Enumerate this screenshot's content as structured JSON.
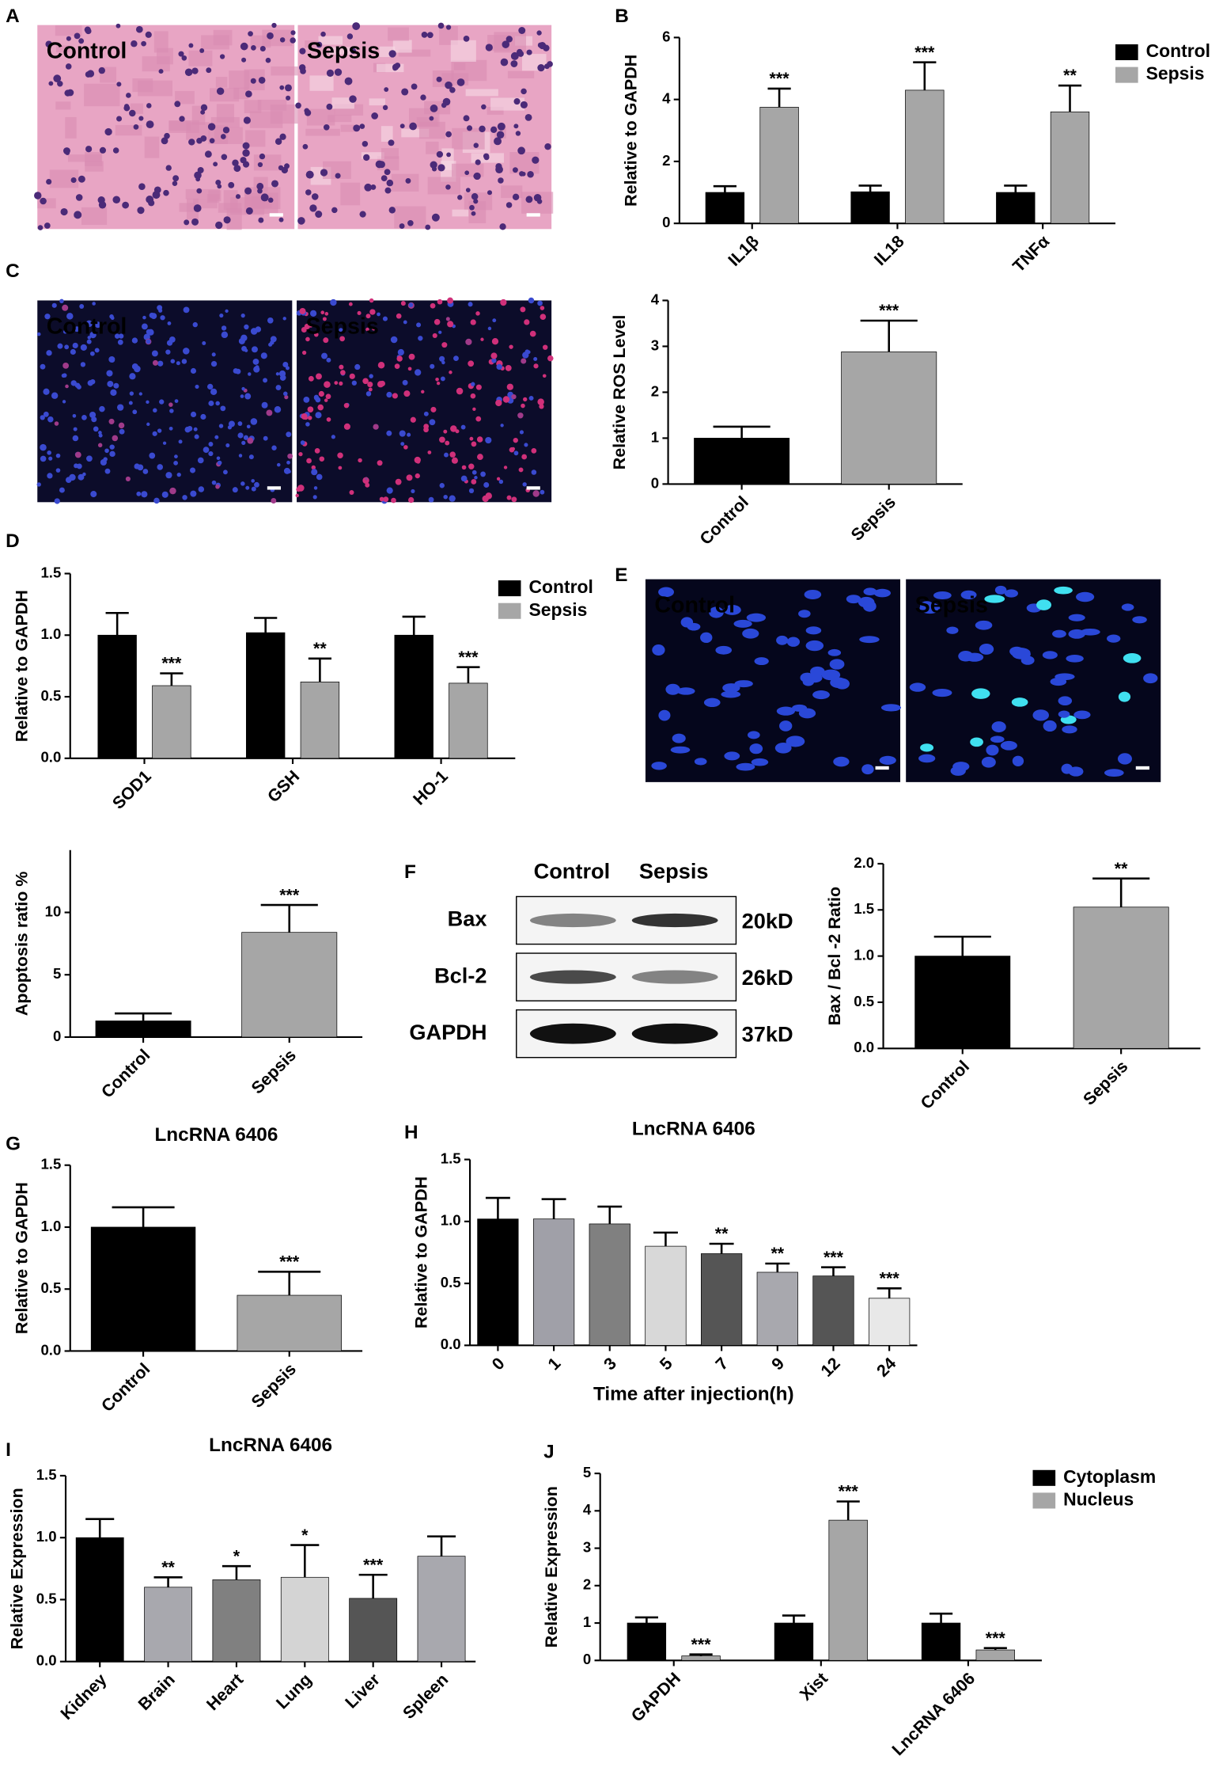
{
  "panels": [
    "A",
    "B",
    "C",
    "D",
    "E",
    "F",
    "G",
    "H",
    "I",
    "J"
  ],
  "images": [
    {
      "label": "Control"
    },
    {
      "label": "Sepsis"
    },
    {
      "label": "Control"
    },
    {
      "label": "Sepsis"
    },
    {
      "label": "Control"
    },
    {
      "label": "Sepsis"
    }
  ],
  "blot": {
    "header": [
      "Control",
      "Sepsis"
    ],
    "rows": [
      {
        "label": "Bax",
        "size": "20kD"
      },
      {
        "label": "Bcl-2",
        "size": "26kD"
      },
      {
        "label": "GAPDH",
        "size": "37kD"
      }
    ]
  },
  "chart_data": [
    {
      "type": "bar",
      "ylabel": "Relative to GAPDH",
      "categories": [
        "IL1β",
        "IL18",
        "TNFα"
      ],
      "legend": "upper right",
      "series": [
        {
          "name": "Control",
          "color": "#000000",
          "values": [
            1,
            1.02,
            1
          ],
          "errors": [
            0.2,
            0.2,
            0.22
          ],
          "annotations": [
            null,
            null,
            null
          ]
        },
        {
          "name": "Sepsis",
          "color": "#a6a6a6",
          "values": [
            3.75,
            4.3,
            3.6
          ],
          "errors": [
            0.6,
            0.9,
            0.85
          ],
          "annotations": [
            "***",
            "***",
            "**"
          ]
        }
      ],
      "ylim": [
        0,
        6
      ],
      "yticks": [
        0,
        2,
        4,
        6
      ]
    },
    {
      "type": "bar",
      "ylabel": "Relative ROS Level",
      "categories": [
        "Control",
        "Sepsis"
      ],
      "series": [
        {
          "colors": [
            "#000000",
            "#a6a6a6"
          ],
          "values": [
            1,
            2.88
          ],
          "errors": [
            0.25,
            0.68
          ],
          "annotations": [
            null,
            "***"
          ]
        }
      ],
      "ylim": [
        0,
        4
      ],
      "yticks": [
        0,
        1,
        2,
        3,
        4
      ]
    },
    {
      "type": "bar",
      "ylabel": "Relative to GAPDH",
      "categories": [
        "SOD1",
        "GSH",
        "HO-1"
      ],
      "legend": "upper right",
      "series": [
        {
          "name": "Control",
          "color": "#000000",
          "values": [
            1,
            1.02,
            1
          ],
          "errors": [
            0.18,
            0.12,
            0.15
          ],
          "annotations": [
            null,
            null,
            null
          ]
        },
        {
          "name": "Sepsis",
          "color": "#a6a6a6",
          "values": [
            0.59,
            0.62,
            0.61
          ],
          "errors": [
            0.1,
            0.19,
            0.13
          ],
          "annotations": [
            "***",
            "**",
            "***"
          ]
        }
      ],
      "ylim": [
        0,
        1.5
      ],
      "yticks": [
        {
          "value": 0,
          "label": "0.0"
        },
        {
          "value": 0.5,
          "label": "0.5"
        },
        {
          "value": 1,
          "label": "1.0"
        },
        {
          "value": 1.5,
          "label": "1.5"
        }
      ]
    },
    {
      "type": "bar",
      "ylabel": "Apoptosis ratio %",
      "categories": [
        "Control",
        "Sepsis"
      ],
      "series": [
        {
          "colors": [
            "#000000",
            "#a6a6a6"
          ],
          "values": [
            1.3,
            8.4
          ],
          "errors": [
            0.6,
            2.2
          ],
          "annotations": [
            null,
            "***"
          ]
        }
      ],
      "ylim": [
        0,
        15
      ],
      "yticks": [
        0,
        5,
        10
      ]
    },
    {
      "type": "bar",
      "ylabel": "Bax / Bcl -2  Ratio",
      "categories": [
        "Control",
        "Sepsis"
      ],
      "series": [
        {
          "colors": [
            "#000000",
            "#a6a6a6"
          ],
          "values": [
            1,
            1.53
          ],
          "errors": [
            0.21,
            0.31
          ],
          "annotations": [
            null,
            "**"
          ]
        }
      ],
      "ylim": [
        0,
        2
      ],
      "yticks": [
        {
          "value": 0,
          "label": "0.0"
        },
        {
          "value": 0.5,
          "label": "0.5"
        },
        {
          "value": 1,
          "label": "1.0"
        },
        {
          "value": 1.5,
          "label": "1.5"
        },
        {
          "value": 2,
          "label": "2.0"
        }
      ]
    },
    {
      "type": "bar",
      "title": "LncRNA 6406",
      "ylabel": "Relative to GAPDH",
      "categories": [
        "Control",
        "Sepsis"
      ],
      "series": [
        {
          "colors": [
            "#000000",
            "#a6a6a6"
          ],
          "values": [
            1,
            0.45
          ],
          "errors": [
            0.16,
            0.19
          ],
          "annotations": [
            null,
            "***"
          ]
        }
      ],
      "ylim": [
        0,
        1.5
      ],
      "yticks": [
        {
          "value": 0,
          "label": "0.0"
        },
        {
          "value": 0.5,
          "label": "0.5"
        },
        {
          "value": 1,
          "label": "1.0"
        },
        {
          "value": 1.5,
          "label": "1.5"
        }
      ]
    },
    {
      "type": "bar",
      "title": "LncRNA 6406",
      "ylabel": "Relative to GAPDH",
      "xlabel": "Time after injection(h)",
      "categories": [
        "0",
        "1",
        "3",
        "5",
        "7",
        "9",
        "12",
        "24"
      ],
      "series": [
        {
          "colors": [
            "#000000",
            "#a0a0a8",
            "#808080",
            "#d8d8d8",
            "#555555",
            "#a8a8ae",
            "#555555",
            "#e8e8e8"
          ],
          "values": [
            1.02,
            1.02,
            0.98,
            0.8,
            0.74,
            0.59,
            0.56,
            0.38
          ],
          "errors": [
            0.17,
            0.16,
            0.14,
            0.11,
            0.08,
            0.07,
            0.07,
            0.08
          ],
          "annotations": [
            null,
            null,
            null,
            null,
            "**",
            "**",
            "***",
            "***"
          ]
        }
      ],
      "ylim": [
        0,
        1.5
      ],
      "yticks": [
        {
          "value": 0,
          "label": "0.0"
        },
        {
          "value": 0.5,
          "label": "0.5"
        },
        {
          "value": 1,
          "label": "1.0"
        },
        {
          "value": 1.5,
          "label": "1.5"
        }
      ]
    },
    {
      "type": "bar",
      "title": "LncRNA 6406",
      "ylabel": "Relative Expression",
      "categories": [
        "Kidney",
        "Brain",
        "Heart",
        "Lung",
        "Liver",
        "Spleen"
      ],
      "series": [
        {
          "colors": [
            "#000000",
            "#a8a8ae",
            "#808080",
            "#d4d4d4",
            "#555555",
            "#a8a8ae"
          ],
          "values": [
            1,
            0.6,
            0.66,
            0.68,
            0.51,
            0.85
          ],
          "errors": [
            0.15,
            0.08,
            0.11,
            0.26,
            0.19,
            0.16
          ],
          "annotations": [
            null,
            "**",
            "*",
            "*",
            "***",
            null
          ]
        }
      ],
      "ylim": [
        0,
        1.5
      ],
      "yticks": [
        {
          "value": 0,
          "label": "0.0"
        },
        {
          "value": 0.5,
          "label": "0.5"
        },
        {
          "value": 1,
          "label": "1.0"
        },
        {
          "value": 1.5,
          "label": "1.5"
        }
      ]
    },
    {
      "type": "bar",
      "ylabel": "Relative Expression",
      "categories": [
        "GAPDH",
        "Xist",
        "LncRNA 6406"
      ],
      "legend": "upper right",
      "series": [
        {
          "name": "Cytoplasm",
          "color": "#000000",
          "values": [
            1,
            1,
            1
          ],
          "errors": [
            0.15,
            0.2,
            0.25
          ],
          "annotations": [
            null,
            null,
            null
          ]
        },
        {
          "name": "Nucleus",
          "color": "#a6a6a6",
          "values": [
            0.12,
            3.75,
            0.28
          ],
          "errors": [
            0.04,
            0.5,
            0.05
          ],
          "annotations": [
            "***",
            "***",
            "***"
          ]
        }
      ],
      "ylim": [
        0,
        5
      ],
      "yticks": [
        0,
        1,
        2,
        3,
        4,
        5
      ]
    }
  ]
}
